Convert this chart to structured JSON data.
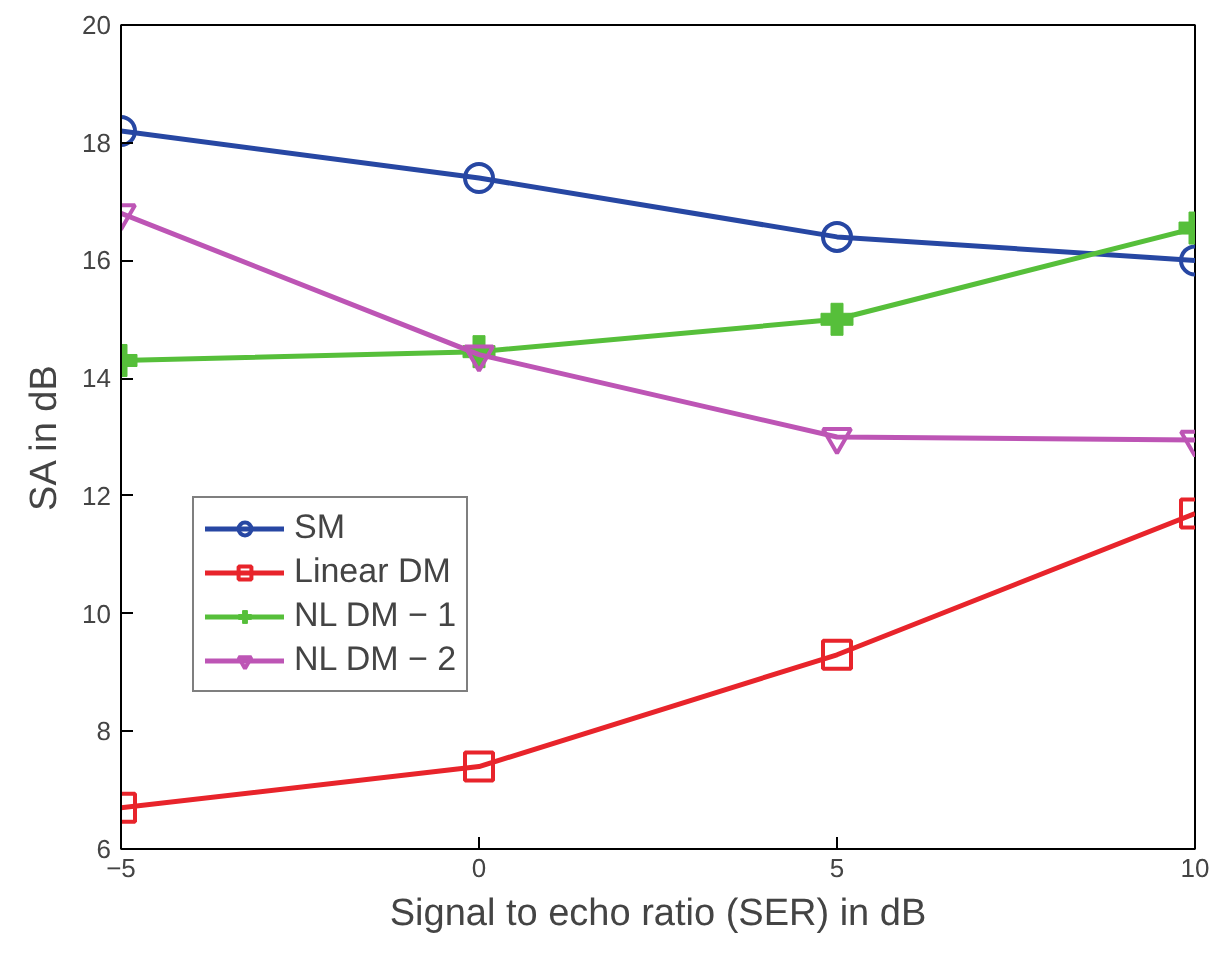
{
  "chart_data": {
    "type": "line",
    "xlabel": "Signal to echo ratio (SER) in dB",
    "ylabel": "SA in dB",
    "x": [
      -5,
      0,
      5,
      10
    ],
    "series": [
      {
        "name": "SM",
        "color": "#2747a3",
        "marker": "circle",
        "values": [
          18.2,
          17.4,
          16.4,
          16.0
        ]
      },
      {
        "name": "Linear DM",
        "color": "#e8242b",
        "marker": "square",
        "values": [
          6.7,
          7.4,
          9.3,
          11.7
        ]
      },
      {
        "name": "NL DM − 1",
        "color": "#56bf3a",
        "marker": "cross",
        "values": [
          14.3,
          14.45,
          15.0,
          16.55
        ]
      },
      {
        "name": "NL DM − 2",
        "color": "#bd55b5",
        "marker": "triangle",
        "values": [
          16.8,
          14.4,
          13.0,
          12.95
        ]
      }
    ],
    "xlim": [
      -5,
      10
    ],
    "xticks": [
      -5,
      0,
      5,
      10
    ],
    "ylim": [
      6,
      20
    ],
    "yticks": [
      6,
      8,
      10,
      12,
      14,
      16,
      18,
      20
    ],
    "grid": false,
    "legend": "left",
    "line_style": "solid"
  }
}
